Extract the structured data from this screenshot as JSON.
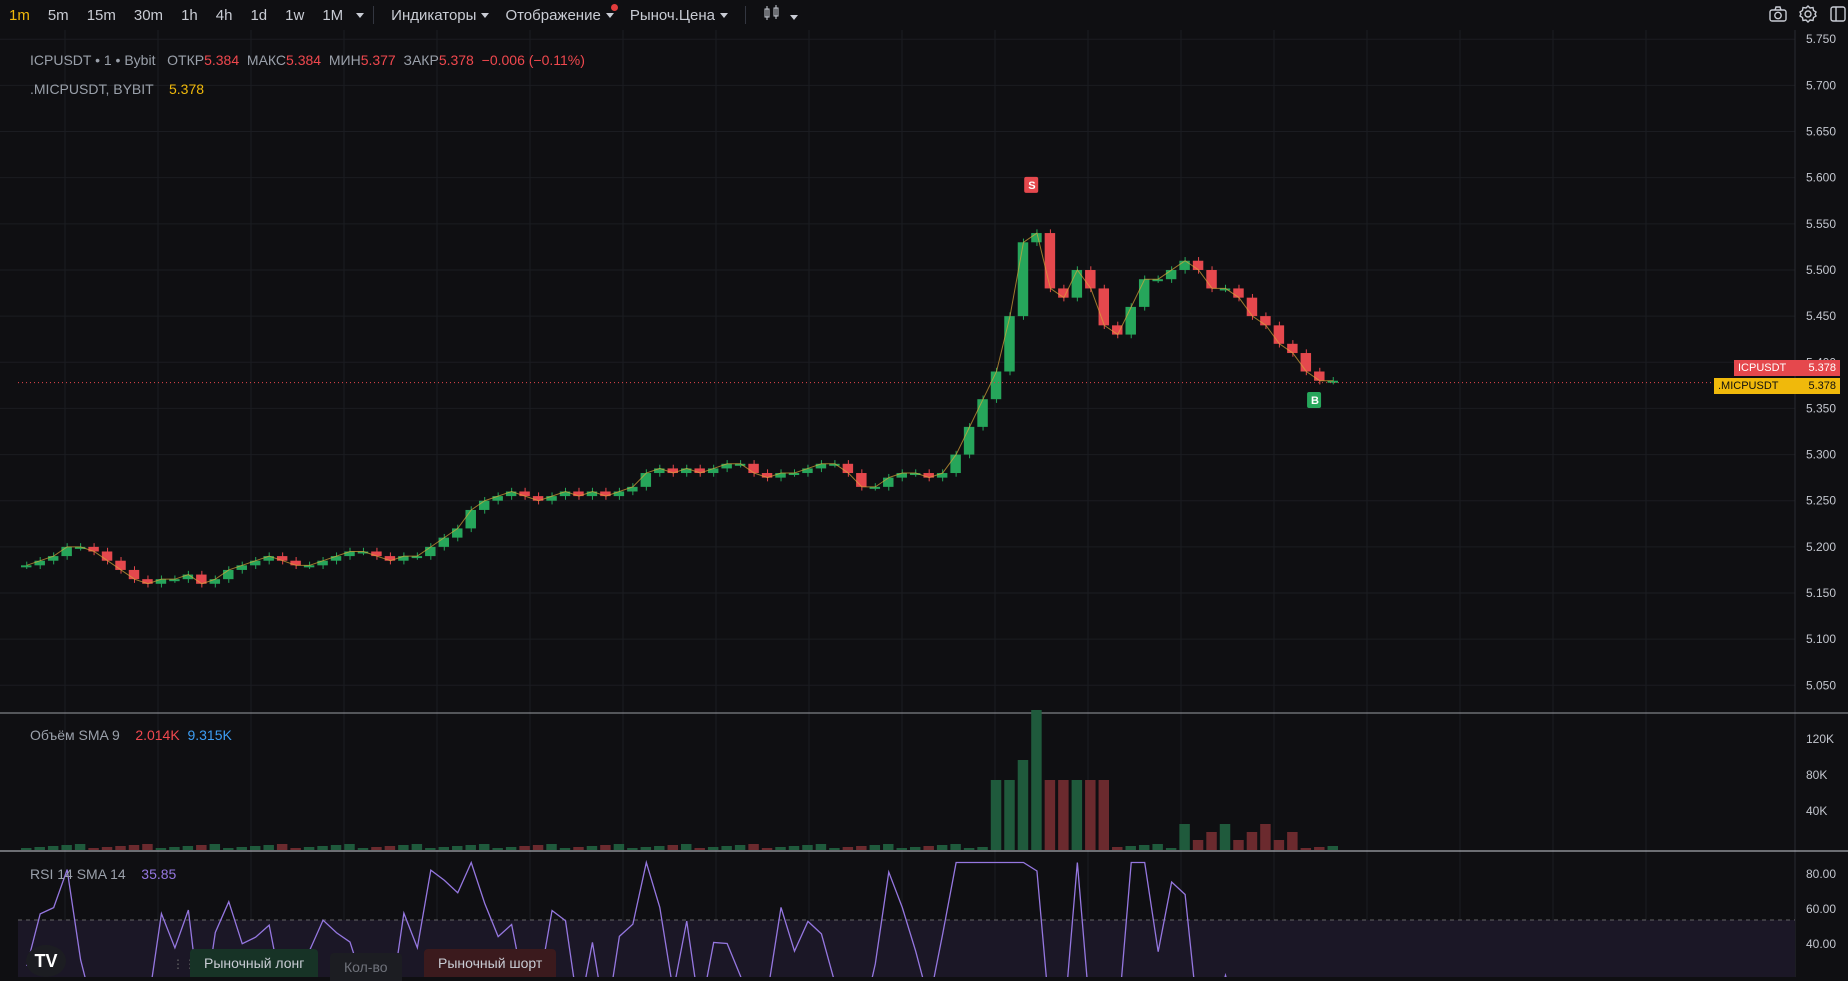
{
  "toolbar": {
    "timeframes": [
      "1m",
      "5m",
      "15m",
      "30m",
      "1h",
      "4h",
      "1d",
      "1w",
      "1M"
    ],
    "active": "1m",
    "indicators": "Индикаторы",
    "display": "Отображение",
    "price_type": "Рыноч.Цена"
  },
  "legend": {
    "symbol": "ICPUSDT • 1 • Bybit",
    "open_label": "ОТКР",
    "open": "5.384",
    "high_label": "МАКС",
    "high": "5.384",
    "low_label": "МИН",
    "low": "5.377",
    "close_label": "ЗАКР",
    "close": "5.378",
    "change": "−0.006 (−0.11%)",
    "index_symbol": ".MICPUSDT, BYBIT",
    "index_value": "5.378"
  },
  "price_axis": [
    "5.750",
    "5.700",
    "5.650",
    "5.600",
    "5.550",
    "5.500",
    "5.450",
    "5.400",
    "5.350",
    "5.300",
    "5.250",
    "5.200",
    "5.150",
    "5.100",
    "5.050"
  ],
  "price_tags": {
    "symbol_label": "ICPUSDT",
    "symbol_price": "5.378",
    "index_label": ".MICPUSDT",
    "index_price": "5.378"
  },
  "markers": {
    "sell": "S",
    "buy": "B"
  },
  "volume": {
    "label": "Объём SMA 9",
    "v1": "2.014K",
    "v2": "9.315K",
    "axis": [
      "120K",
      "80K",
      "40K"
    ]
  },
  "rsi": {
    "label": "RSI 14 SMA 14",
    "value": "35.85",
    "axis": [
      "80.00",
      "60.00",
      "40.00"
    ]
  },
  "bottom": {
    "long": "Рыночный лонг",
    "qty": "Кол-во",
    "short": "Рыночный шорт"
  },
  "colors": {
    "up": "#26a65b",
    "down": "#e5484d",
    "bg": "#0f0f12",
    "rsi": "#9577e0",
    "accent": "#f0b90b"
  },
  "chart_data": {
    "type": "line",
    "ylim": [
      5.02,
      5.76
    ],
    "closes": [
      5.18,
      5.185,
      5.19,
      5.2,
      5.2,
      5.195,
      5.185,
      5.175,
      5.165,
      5.16,
      5.165,
      5.165,
      5.17,
      5.16,
      5.165,
      5.175,
      5.18,
      5.185,
      5.19,
      5.185,
      5.18,
      5.18,
      5.185,
      5.19,
      5.195,
      5.195,
      5.19,
      5.185,
      5.19,
      5.19,
      5.2,
      5.21,
      5.22,
      5.24,
      5.25,
      5.255,
      5.26,
      5.255,
      5.25,
      5.255,
      5.26,
      5.255,
      5.26,
      5.255,
      5.26,
      5.265,
      5.28,
      5.285,
      5.28,
      5.285,
      5.28,
      5.285,
      5.29,
      5.29,
      5.28,
      5.275,
      5.28,
      5.28,
      5.285,
      5.29,
      5.29,
      5.28,
      5.265,
      5.265,
      5.275,
      5.28,
      5.28,
      5.275,
      5.28,
      5.3,
      5.33,
      5.36,
      5.39,
      5.45,
      5.53,
      5.54,
      5.48,
      5.47,
      5.5,
      5.48,
      5.44,
      5.43,
      5.46,
      5.49,
      5.49,
      5.5,
      5.51,
      5.5,
      5.48,
      5.48,
      5.47,
      5.45,
      5.44,
      5.42,
      5.41,
      5.39,
      5.38,
      5.38
    ]
  }
}
